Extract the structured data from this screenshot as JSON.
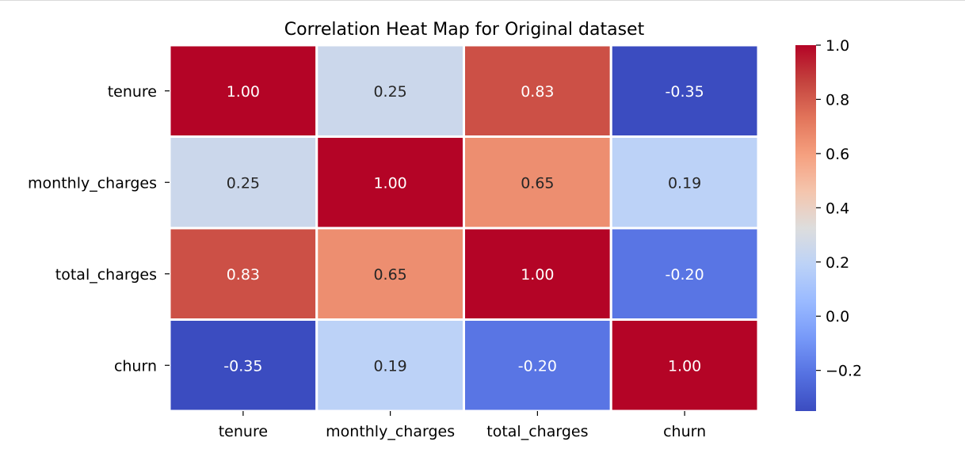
{
  "chart_data": {
    "type": "heatmap",
    "title": "Correlation Heat Map for Original dataset",
    "xlabel": "",
    "ylabel": "",
    "x_categories": [
      "tenure",
      "monthly_charges",
      "total_charges",
      "churn"
    ],
    "y_categories": [
      "tenure",
      "monthly_charges",
      "total_charges",
      "churn"
    ],
    "matrix": [
      [
        1.0,
        0.25,
        0.83,
        -0.35
      ],
      [
        0.25,
        1.0,
        0.65,
        0.19
      ],
      [
        0.83,
        0.65,
        1.0,
        -0.2
      ],
      [
        -0.35,
        0.19,
        -0.2,
        1.0
      ]
    ],
    "cell_labels": [
      [
        "1.00",
        "0.25",
        "0.83",
        "-0.35"
      ],
      [
        "0.25",
        "1.00",
        "0.65",
        "0.19"
      ],
      [
        "0.83",
        "0.65",
        "1.00",
        "-0.20"
      ],
      [
        "-0.35",
        "0.19",
        "-0.20",
        "1.00"
      ]
    ],
    "colormap": "coolwarm",
    "colorbar": {
      "range": [
        -0.35,
        1.0
      ],
      "ticks": [
        1.0,
        0.8,
        0.6,
        0.4,
        0.2,
        0.0,
        -0.2
      ],
      "tick_labels": [
        "1.0",
        "0.8",
        "0.6",
        "0.4",
        "0.2",
        "0.0",
        "−0.2"
      ]
    },
    "grid": true
  }
}
